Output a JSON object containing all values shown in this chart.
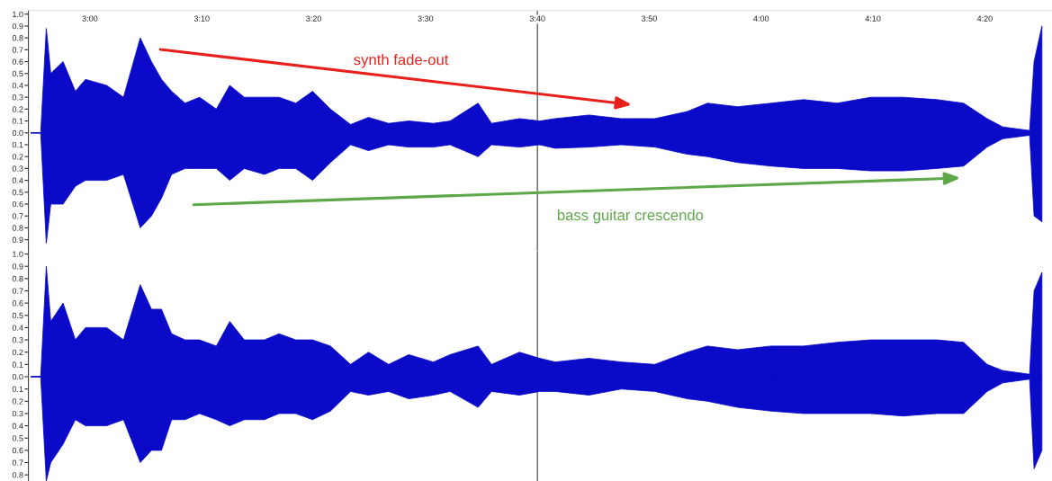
{
  "chart_data": [
    {
      "type": "area",
      "x": [
        174.7,
        175.6,
        176.1,
        176.5,
        177.6,
        178.7,
        179.6,
        181.5,
        183.0,
        184.5,
        185.5,
        186.4,
        187.3,
        188.5,
        189.8,
        191.3,
        192.5,
        193.8,
        195.6,
        196.9,
        198.4,
        199.9,
        201.5,
        203.3,
        204.9,
        206.7,
        208.5,
        210.7,
        212.2,
        214.7,
        215.9,
        218.4,
        220.2,
        221.6,
        224.6,
        227.5,
        230.5,
        233.4,
        235.2,
        237.9,
        240.9,
        243.8,
        246.8,
        249.8,
        252.7,
        255.7,
        258.1,
        260.2,
        261.6,
        264.0,
        264.4,
        265.1
      ],
      "series": [
        {
          "color": "#0a0ac8",
          "values": [
            0,
            0,
            0.88,
            0.5,
            0.6,
            0.35,
            0.45,
            0.4,
            0.3,
            0.8,
            0.6,
            0.45,
            0.35,
            0.25,
            0.3,
            0.2,
            0.4,
            0.3,
            0.3,
            0.3,
            0.25,
            0.35,
            0.2,
            0.07,
            0.13,
            0.08,
            0.1,
            0.08,
            0.1,
            0.25,
            0.08,
            0.12,
            0.1,
            0.12,
            0.15,
            0.12,
            0.12,
            0.18,
            0.25,
            0.22,
            0.25,
            0.28,
            0.25,
            0.3,
            0.3,
            0.28,
            0.25,
            0.12,
            0.05,
            0.02,
            0.6,
            0.9
          ]
        },
        {
          "color": "#0a0ac8",
          "values": [
            0,
            0,
            -0.93,
            -0.6,
            -0.6,
            -0.45,
            -0.4,
            -0.4,
            -0.35,
            -0.8,
            -0.7,
            -0.55,
            -0.35,
            -0.3,
            -0.3,
            -0.3,
            -0.4,
            -0.3,
            -0.35,
            -0.3,
            -0.3,
            -0.4,
            -0.25,
            -0.1,
            -0.15,
            -0.1,
            -0.12,
            -0.12,
            -0.1,
            -0.2,
            -0.1,
            -0.12,
            -0.1,
            -0.13,
            -0.12,
            -0.1,
            -0.12,
            -0.18,
            -0.2,
            -0.25,
            -0.28,
            -0.3,
            -0.3,
            -0.32,
            -0.32,
            -0.3,
            -0.28,
            -0.12,
            -0.05,
            -0.02,
            -0.7,
            -0.75
          ]
        }
      ],
      "xlim": [
        174.5,
        266
      ],
      "xticks": [
        {
          "value": 180,
          "label": "3:00"
        },
        {
          "value": 190,
          "label": "3:10"
        },
        {
          "value": 200,
          "label": "3:20"
        },
        {
          "value": 210,
          "label": "3:30"
        },
        {
          "value": 220,
          "label": "3:40"
        },
        {
          "value": 230,
          "label": "3:50"
        },
        {
          "value": 240,
          "label": "4:00"
        },
        {
          "value": 250,
          "label": "4:10"
        },
        {
          "value": 260,
          "label": "4:20"
        }
      ],
      "ylim": [
        -1.0,
        1.03
      ],
      "yticks": [
        {
          "value": 1,
          "label": "1.0"
        },
        0.9,
        0.8,
        0.7,
        0.6,
        0.5,
        0.4,
        0.3,
        0.2,
        0.1,
        {
          "value": 0,
          "label": "0.0"
        },
        {
          "value": -0.1,
          "label": "0.1"
        },
        {
          "value": -0.2,
          "label": "0.2"
        },
        {
          "value": -0.3,
          "label": "0.3"
        },
        {
          "value": -0.4,
          "label": "0.4"
        },
        {
          "value": -0.5,
          "label": "0.5"
        },
        {
          "value": -0.6,
          "label": "0.6"
        },
        {
          "value": -0.7,
          "label": "0.7"
        },
        {
          "value": -0.8,
          "label": "0.8"
        },
        {
          "value": -0.9,
          "label": "0.9"
        }
      ],
      "ref_lines": [
        {
          "axis": "x",
          "value": 220,
          "color": "#555555"
        }
      ],
      "annotations": [
        "synth fade-out",
        "bass guitar crescendo"
      ]
    },
    {
      "type": "area",
      "x": [
        174.7,
        175.6,
        176.1,
        176.5,
        177.6,
        178.7,
        179.6,
        181.5,
        183.0,
        184.5,
        185.5,
        186.4,
        187.3,
        188.5,
        189.8,
        191.3,
        192.5,
        193.8,
        195.6,
        196.9,
        198.4,
        199.9,
        201.5,
        203.3,
        204.9,
        206.7,
        208.5,
        210.7,
        212.2,
        214.7,
        215.9,
        218.4,
        220.2,
        221.6,
        224.6,
        227.5,
        230.5,
        233.4,
        235.2,
        237.9,
        240.9,
        243.8,
        246.8,
        249.8,
        252.7,
        255.7,
        258.1,
        260.2,
        261.6,
        264.0,
        264.4,
        265.1
      ],
      "series": [
        {
          "color": "#0a0ac8",
          "values": [
            0,
            0,
            0.9,
            0.45,
            0.6,
            0.3,
            0.4,
            0.4,
            0.3,
            0.75,
            0.55,
            0.55,
            0.35,
            0.3,
            0.3,
            0.25,
            0.45,
            0.3,
            0.3,
            0.35,
            0.3,
            0.3,
            0.25,
            0.1,
            0.2,
            0.1,
            0.18,
            0.12,
            0.18,
            0.25,
            0.1,
            0.2,
            0.15,
            0.12,
            0.15,
            0.12,
            0.1,
            0.2,
            0.25,
            0.22,
            0.25,
            0.25,
            0.28,
            0.3,
            0.3,
            0.3,
            0.28,
            0.1,
            0.05,
            0.02,
            0.7,
            0.85
          ]
        },
        {
          "color": "#0a0ac8",
          "values": [
            0,
            0,
            -0.85,
            -0.7,
            -0.55,
            -0.35,
            -0.4,
            -0.4,
            -0.35,
            -0.7,
            -0.6,
            -0.6,
            -0.35,
            -0.35,
            -0.3,
            -0.35,
            -0.4,
            -0.35,
            -0.35,
            -0.3,
            -0.3,
            -0.35,
            -0.28,
            -0.12,
            -0.15,
            -0.12,
            -0.18,
            -0.15,
            -0.12,
            -0.25,
            -0.12,
            -0.15,
            -0.12,
            -0.12,
            -0.15,
            -0.1,
            -0.12,
            -0.18,
            -0.2,
            -0.25,
            -0.28,
            -0.3,
            -0.3,
            -0.3,
            -0.32,
            -0.3,
            -0.3,
            -0.12,
            -0.05,
            -0.02,
            -0.75,
            -0.6
          ]
        }
      ],
      "xlim": [
        174.5,
        266
      ],
      "ylim": [
        -0.85,
        1.02
      ],
      "yticks": [
        {
          "value": 1,
          "label": "1.0"
        },
        0.9,
        0.8,
        0.7,
        0.6,
        0.5,
        0.4,
        0.3,
        0.2,
        0.1,
        {
          "value": 0,
          "label": "0.0"
        },
        {
          "value": -0.1,
          "label": "0.1"
        },
        {
          "value": -0.2,
          "label": "0.2"
        },
        {
          "value": -0.3,
          "label": "0.3"
        },
        {
          "value": -0.4,
          "label": "0.4"
        },
        {
          "value": -0.5,
          "label": "0.5"
        },
        {
          "value": -0.6,
          "label": "0.6"
        },
        {
          "value": -0.7,
          "label": "0.7"
        },
        {
          "value": -0.8,
          "label": "0.8"
        }
      ],
      "tick_labels": "y",
      "ref_lines": [
        {
          "axis": "x",
          "value": 220,
          "color": "#555555"
        }
      ]
    }
  ]
}
